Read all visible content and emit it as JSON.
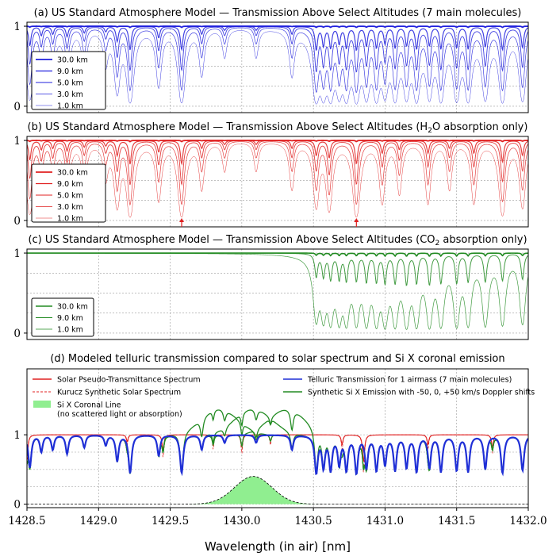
{
  "figure": {
    "xlabel": "Wavelength (in air) [nm]",
    "xlim": [
      1428.5,
      1432.0
    ],
    "xticks": [
      1428.5,
      1429.0,
      1429.5,
      1430.0,
      1430.5,
      1431.0,
      1431.5,
      1432.0
    ],
    "xtick_labels": [
      "1428.5",
      "1429.0",
      "1429.5",
      "1430.0",
      "1430.5",
      "1431.0",
      "1431.5",
      "1432.0"
    ]
  },
  "chart_data": [
    {
      "type": "line",
      "id": "a",
      "title": "(a) US Standard Atmosphere Model — Transmission Above Select Altitudes (7 main molecules)",
      "ylim": [
        -0.08,
        1.05
      ],
      "yticks": [
        0,
        1
      ],
      "ytick_labels": [
        "0",
        "1"
      ],
      "color": "#2020dd",
      "legend_position": "lower-left",
      "series": [
        {
          "name": "30.0 km",
          "altitude_km": 30.0
        },
        {
          "name": "9.0 km",
          "altitude_km": 9.0
        },
        {
          "name": "5.0 km",
          "altitude_km": 5.0
        },
        {
          "name": "3.0 km",
          "altitude_km": 3.0
        },
        {
          "name": "1.0 km",
          "altitude_km": 1.0
        }
      ],
      "lines_nm": [
        [
          1428.52,
          0.8
        ],
        [
          1428.6,
          0.35
        ],
        [
          1428.68,
          0.3
        ],
        [
          1428.78,
          0.4
        ],
        [
          1428.9,
          0.25
        ],
        [
          1429.05,
          0.2
        ],
        [
          1429.13,
          0.6
        ],
        [
          1429.22,
          1.0
        ],
        [
          1429.42,
          0.45
        ],
        [
          1429.58,
          1.0
        ],
        [
          1429.72,
          0.3
        ],
        [
          1429.88,
          0.15
        ],
        [
          1430.1,
          0.15
        ],
        [
          1430.35,
          0.3
        ],
        [
          1430.52,
          1.0
        ],
        [
          1430.57,
          0.8
        ],
        [
          1430.62,
          0.9
        ],
        [
          1430.68,
          0.7
        ],
        [
          1430.73,
          0.9
        ],
        [
          1430.8,
          1.0
        ],
        [
          1430.87,
          0.8
        ],
        [
          1430.94,
          0.9
        ],
        [
          1431.0,
          0.7
        ],
        [
          1431.07,
          0.9
        ],
        [
          1431.15,
          0.8
        ],
        [
          1431.22,
          0.95
        ],
        [
          1431.31,
          0.8
        ],
        [
          1431.39,
          0.95
        ],
        [
          1431.5,
          0.9
        ],
        [
          1431.58,
          0.95
        ],
        [
          1431.7,
          0.85
        ],
        [
          1431.82,
          1.0
        ],
        [
          1431.96,
          0.9
        ]
      ]
    },
    {
      "type": "line",
      "id": "b",
      "title_prefix": "(b) US Standard Atmosphere Model — Transmission Above Select Altitudes (H",
      "title_sub": "2",
      "title_suffix": "O absorption only)",
      "ylim": [
        -0.08,
        1.05
      ],
      "yticks": [
        0,
        1
      ],
      "ytick_labels": [
        "0",
        "1"
      ],
      "color": "#e02020",
      "legend_position": "lower-left",
      "series": [
        {
          "name": "30.0 km",
          "altitude_km": 30.0
        },
        {
          "name": "9.0 km",
          "altitude_km": 9.0
        },
        {
          "name": "5.0 km",
          "altitude_km": 5.0
        },
        {
          "name": "3.0 km",
          "altitude_km": 3.0
        },
        {
          "name": "1.0 km",
          "altitude_km": 1.0
        }
      ],
      "markers_nm": [
        1429.58,
        1430.8
      ],
      "lines_nm": [
        [
          1428.52,
          0.8
        ],
        [
          1428.6,
          0.35
        ],
        [
          1428.68,
          0.3
        ],
        [
          1428.78,
          0.4
        ],
        [
          1428.9,
          0.25
        ],
        [
          1429.05,
          0.2
        ],
        [
          1429.13,
          0.6
        ],
        [
          1429.22,
          1.0
        ],
        [
          1429.42,
          0.45
        ],
        [
          1429.58,
          1.0
        ],
        [
          1429.72,
          0.3
        ],
        [
          1429.88,
          0.15
        ],
        [
          1430.1,
          0.15
        ],
        [
          1430.35,
          0.3
        ],
        [
          1430.52,
          0.6
        ],
        [
          1430.61,
          0.7
        ],
        [
          1430.8,
          1.0
        ],
        [
          1430.98,
          0.5
        ],
        [
          1431.1,
          0.35
        ],
        [
          1431.3,
          0.5
        ],
        [
          1431.45,
          0.3
        ],
        [
          1431.62,
          0.5
        ],
        [
          1431.82,
          0.9
        ],
        [
          1431.96,
          0.6
        ]
      ]
    },
    {
      "type": "line",
      "id": "c",
      "title_prefix": "(c) US Standard Atmosphere Model — Transmission Above Select Altitudes (CO",
      "title_sub": "2",
      "title_suffix": " absorption only)",
      "ylim": [
        -0.08,
        1.05
      ],
      "yticks": [
        0,
        1
      ],
      "ytick_labels": [
        "0",
        "1"
      ],
      "color": "#228b22",
      "legend_position": "lower-left",
      "series": [
        {
          "name": "30.0 km",
          "altitude_km": 30.0
        },
        {
          "name": "9.0 km",
          "altitude_km": 9.0
        },
        {
          "name": "1.0 km",
          "altitude_km": 1.0
        }
      ],
      "lines_nm": [
        [
          1430.52,
          0.7
        ],
        [
          1430.57,
          0.7
        ],
        [
          1430.62,
          0.8
        ],
        [
          1430.68,
          0.8
        ],
        [
          1430.73,
          0.85
        ],
        [
          1430.8,
          0.85
        ],
        [
          1430.87,
          0.9
        ],
        [
          1430.94,
          0.9
        ],
        [
          1431.0,
          0.95
        ],
        [
          1431.07,
          0.95
        ],
        [
          1431.15,
          1.0
        ],
        [
          1431.22,
          0.95
        ],
        [
          1431.31,
          1.0
        ],
        [
          1431.39,
          0.95
        ],
        [
          1431.5,
          0.95
        ],
        [
          1431.58,
          0.9
        ],
        [
          1431.7,
          0.9
        ],
        [
          1431.82,
          0.85
        ],
        [
          1431.96,
          0.8
        ]
      ]
    },
    {
      "type": "line",
      "id": "d",
      "title": "(d) Modeled telluric transmission compared to solar spectrum and Si X coronal emission",
      "ylim": [
        -0.05,
        1.95
      ],
      "yticks": [
        0,
        1
      ],
      "ytick_labels": [
        "0",
        "1"
      ],
      "legend_position": "top",
      "legend": [
        {
          "name": "Solar Pseudo-Transmittance Spectrum",
          "color": "#e02020",
          "style": "solid"
        },
        {
          "name": "Kurucz Synthetic Solar Spectrum",
          "color": "#e02020",
          "style": "dashed"
        },
        {
          "name": "Si X Coronal Line",
          "name_line2": "(no scattered light or absorption)",
          "color": "#90ee90",
          "style": "fill"
        },
        {
          "name": "Telluric Transmission for 1 airmass (7 main molecules)",
          "color": "#1f2fd6",
          "style": "solid"
        },
        {
          "name": "Synthetic Si X Emission with -50, 0, +50 km/s Doppler shifts",
          "color": "#228b22",
          "style": "solid"
        }
      ],
      "solar_lines_nm": [
        [
          1428.5,
          0.4
        ],
        [
          1429.45,
          0.25
        ],
        [
          1429.8,
          0.15
        ],
        [
          1430.0,
          0.2
        ],
        [
          1430.85,
          0.5
        ],
        [
          1430.7,
          0.15
        ],
        [
          1431.3,
          0.15
        ],
        [
          1431.75,
          0.2
        ],
        [
          1429.2,
          0.1
        ],
        [
          1430.2,
          0.1
        ]
      ],
      "coronal_line": {
        "center_nm": 1430.08,
        "sigma_nm": 0.13,
        "peak": 0.4
      },
      "doppler_shifts_km_s": [
        -50,
        0,
        50
      ]
    }
  ]
}
